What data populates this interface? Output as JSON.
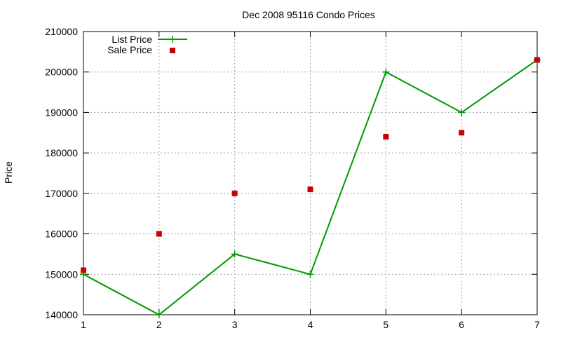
{
  "chart_data": {
    "type": "line",
    "title": "Dec 2008 95116 Condo Prices",
    "xlabel": "",
    "ylabel": "Price",
    "x": [
      1,
      2,
      3,
      4,
      5,
      6,
      7
    ],
    "xlim": [
      1,
      7
    ],
    "ylim": [
      140000,
      210000
    ],
    "xticks": [
      1,
      2,
      3,
      4,
      5,
      6,
      7
    ],
    "yticks": [
      140000,
      150000,
      160000,
      170000,
      180000,
      190000,
      200000,
      210000
    ],
    "grid": true,
    "legend_position": "top-left",
    "series": [
      {
        "name": "List Price",
        "style": "line-with-plus-markers",
        "color": "#009900",
        "values": [
          150000,
          140000,
          155000,
          150000,
          200000,
          190000,
          203000
        ]
      },
      {
        "name": "Sale Price",
        "style": "square-markers",
        "color": "#cc0000",
        "values": [
          151000,
          160000,
          170000,
          171000,
          184000,
          185000,
          203000
        ]
      }
    ]
  }
}
